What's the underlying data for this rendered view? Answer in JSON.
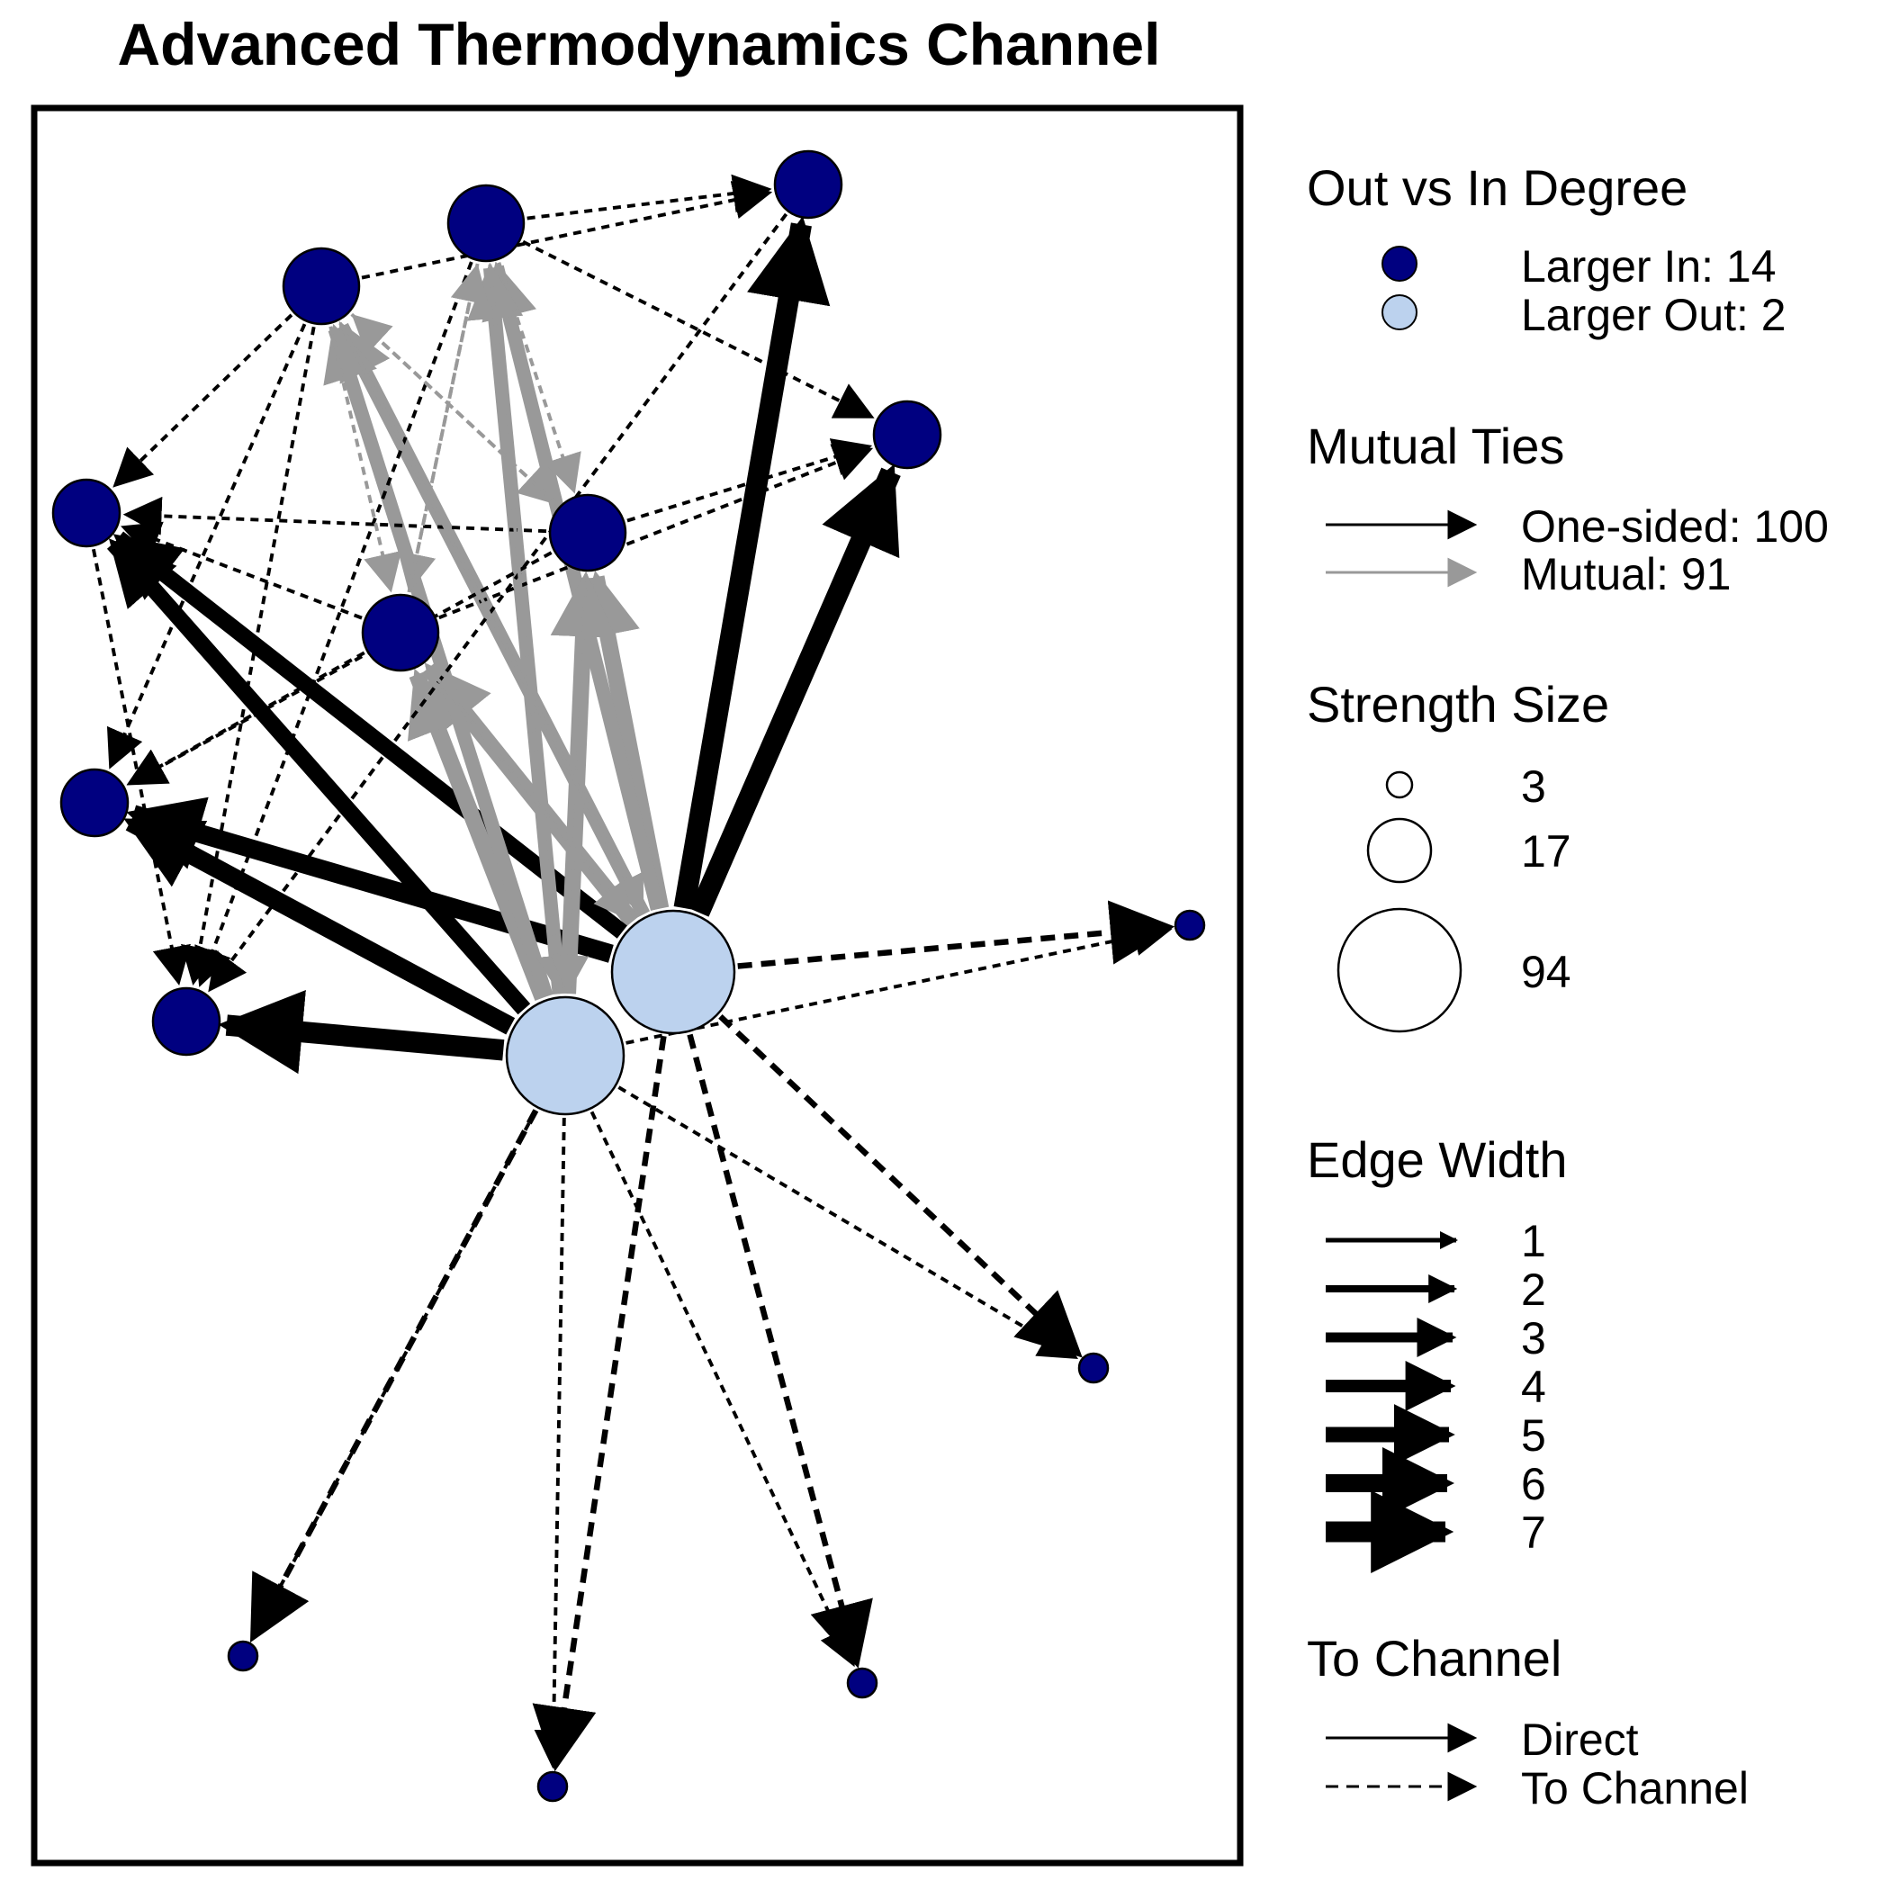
{
  "title": "Advanced Thermodynamics Channel",
  "colors": {
    "larger_in": "#000080",
    "larger_out": "#bcd2ee",
    "one_sided": "#000000",
    "mutual": "#999999",
    "node_stroke": "#000000"
  },
  "legend": {
    "degree": {
      "heading": "Out vs In Degree",
      "items": [
        {
          "label": "Larger In:  14",
          "kind": "in"
        },
        {
          "label": "Larger Out: 2",
          "kind": "out"
        }
      ]
    },
    "mutual": {
      "heading": "Mutual Ties",
      "items": [
        {
          "label": "One-sided: 100",
          "kind": "one_sided"
        },
        {
          "label": "Mutual: 91",
          "kind": "mutual"
        }
      ]
    },
    "strength": {
      "heading": "Strength Size",
      "items": [
        {
          "label": "3",
          "value": 3
        },
        {
          "label": "17",
          "value": 17
        },
        {
          "label": "94",
          "value": 94
        }
      ]
    },
    "edge_width": {
      "heading": "Edge Width",
      "items": [
        {
          "label": "1",
          "value": 1
        },
        {
          "label": "2",
          "value": 2
        },
        {
          "label": "3",
          "value": 3
        },
        {
          "label": "4",
          "value": 4
        },
        {
          "label": "5",
          "value": 5
        },
        {
          "label": "6",
          "value": 6
        },
        {
          "label": "7",
          "value": 7
        }
      ]
    },
    "channel": {
      "heading": "To Channel",
      "items": [
        {
          "label": "Direct",
          "kind": "direct"
        },
        {
          "label": "To Channel",
          "kind": "to_channel"
        }
      ]
    }
  }
}
